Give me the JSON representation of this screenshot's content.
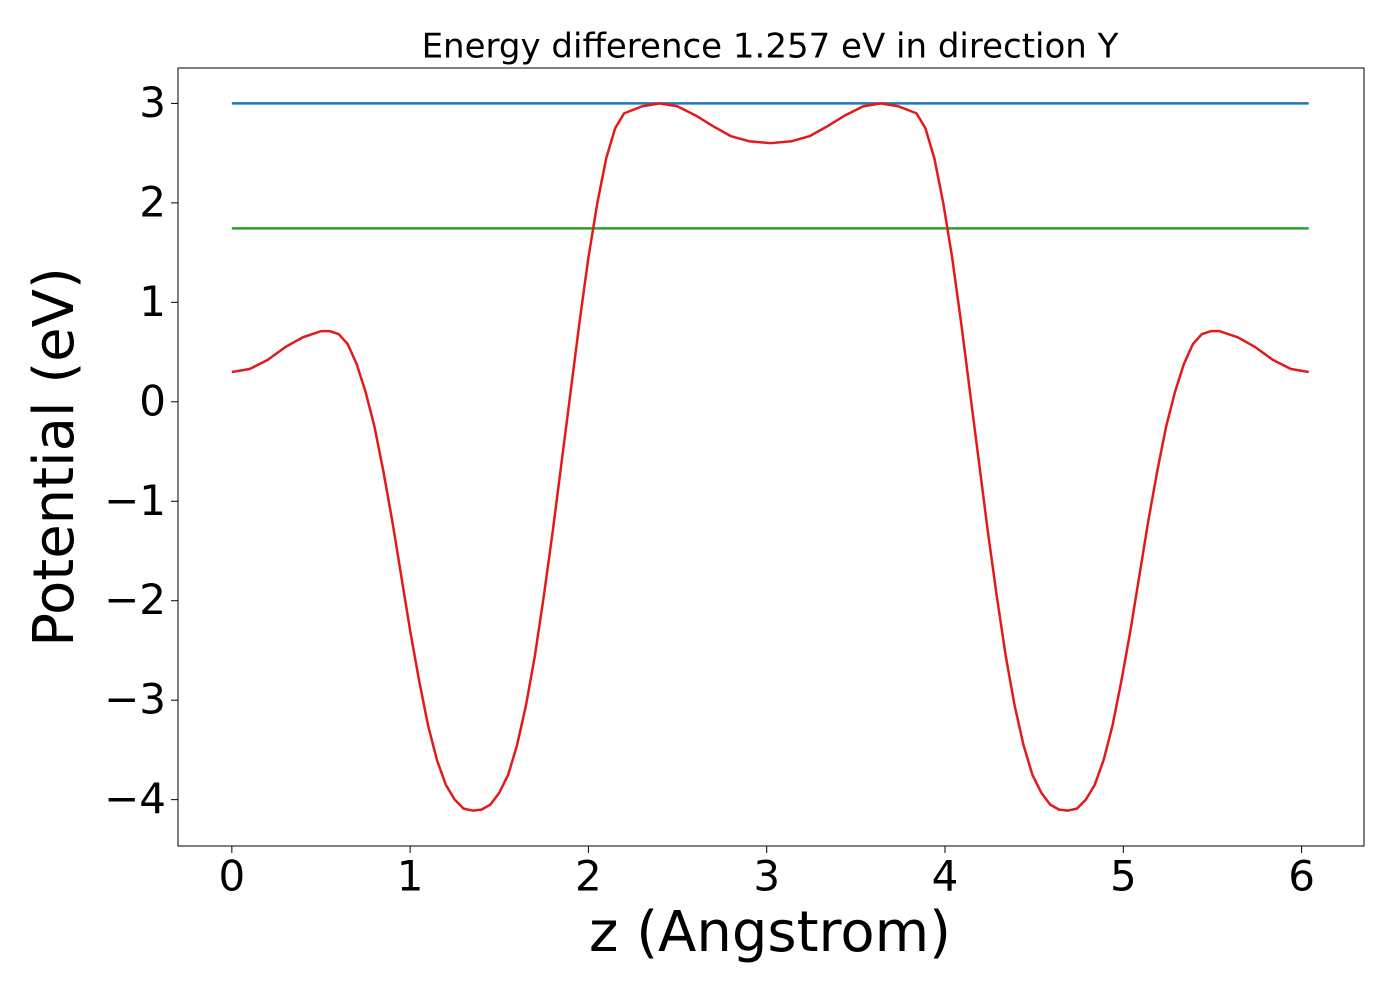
{
  "chart_data": {
    "type": "line",
    "title": "Energy difference 1.257 eV in direction Y",
    "xlabel": "z (Angstrom)",
    "ylabel": "Potential (eV)",
    "xlim": [
      -0.302,
      6.35
    ],
    "ylim": [
      -4.466,
      3.356
    ],
    "xticks": [
      0,
      1,
      2,
      3,
      4,
      5,
      6
    ],
    "yticks": [
      {
        "value": -4,
        "label": "−4"
      },
      {
        "value": -3,
        "label": "−3"
      },
      {
        "value": -2,
        "label": "−2"
      },
      {
        "value": -1,
        "label": "−1"
      },
      0,
      1,
      2,
      3
    ],
    "grid": false,
    "series": [
      {
        "color": "#1f77b4",
        "x": [
          0,
          6.04
        ],
        "values": [
          3.0,
          3.0
        ]
      },
      {
        "color": "#2ca02c",
        "x": [
          0,
          6.04
        ],
        "values": [
          1.743,
          1.743
        ]
      },
      {
        "color": "#e31a1c",
        "x": [
          0,
          0.1,
          0.2,
          0.3,
          0.4,
          0.5,
          0.55,
          0.6,
          0.65,
          0.7,
          0.75,
          0.8,
          0.85,
          0.9,
          0.95,
          1.0,
          1.05,
          1.1,
          1.15,
          1.2,
          1.25,
          1.3,
          1.35,
          1.4,
          1.45,
          1.5,
          1.55,
          1.6,
          1.65,
          1.7,
          1.75,
          1.8,
          1.85,
          1.9,
          1.95,
          2.0,
          2.05,
          2.1,
          2.15,
          2.2,
          2.3,
          2.4,
          2.5,
          2.6,
          2.7,
          2.8,
          2.9,
          3.02,
          3.14,
          3.24,
          3.34,
          3.44,
          3.54,
          3.64,
          3.74,
          3.84,
          3.89,
          3.94,
          3.99,
          4.04,
          4.09,
          4.14,
          4.19,
          4.24,
          4.29,
          4.34,
          4.39,
          4.44,
          4.49,
          4.54,
          4.59,
          4.64,
          4.69,
          4.74,
          4.79,
          4.84,
          4.89,
          4.94,
          4.99,
          5.04,
          5.09,
          5.14,
          5.19,
          5.24,
          5.29,
          5.34,
          5.39,
          5.44,
          5.49,
          5.54,
          5.64,
          5.74,
          5.84,
          5.94,
          6.04
        ],
        "values": [
          0.3,
          0.33,
          0.42,
          0.55,
          0.65,
          0.71,
          0.71,
          0.68,
          0.58,
          0.38,
          0.1,
          -0.25,
          -0.7,
          -1.2,
          -1.75,
          -2.3,
          -2.8,
          -3.25,
          -3.6,
          -3.85,
          -4.0,
          -4.09,
          -4.11,
          -4.1,
          -4.05,
          -3.93,
          -3.75,
          -3.45,
          -3.05,
          -2.55,
          -1.95,
          -1.3,
          -0.6,
          0.1,
          0.8,
          1.45,
          2.0,
          2.45,
          2.75,
          2.9,
          2.97,
          3.0,
          2.97,
          2.88,
          2.77,
          2.67,
          2.62,
          2.6,
          2.62,
          2.67,
          2.77,
          2.88,
          2.97,
          3.0,
          2.97,
          2.9,
          2.75,
          2.45,
          2.0,
          1.45,
          0.8,
          0.1,
          -0.6,
          -1.3,
          -1.95,
          -2.55,
          -3.05,
          -3.45,
          -3.75,
          -3.93,
          -4.05,
          -4.1,
          -4.11,
          -4.09,
          -4.0,
          -3.85,
          -3.6,
          -3.25,
          -2.8,
          -2.3,
          -1.75,
          -1.2,
          -0.7,
          -0.25,
          0.1,
          0.38,
          0.58,
          0.68,
          0.71,
          0.71,
          0.65,
          0.55,
          0.42,
          0.33,
          0.3
        ]
      }
    ]
  }
}
